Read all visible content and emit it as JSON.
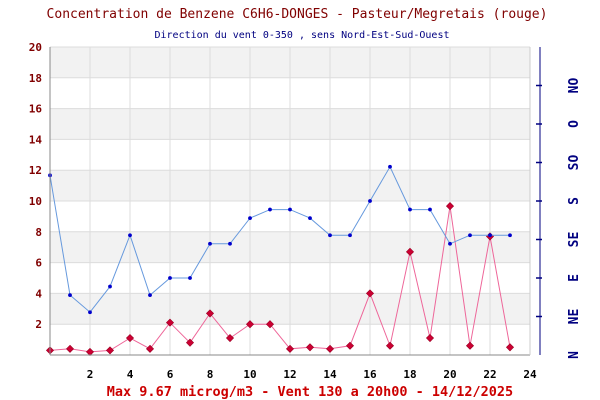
{
  "chart_data": {
    "type": "line",
    "title": "Concentration de Benzene C6H6-DONGES - Pasteur/Megretais (rouge)",
    "subtitle": "Direction du vent 0-350 , sens Nord-Est-Sud-Ouest",
    "footer": "Max 9.67 microg/m3 - Vent 130  a 20h00 - 14/12/2025",
    "xlim": [
      0,
      24
    ],
    "ylim": [
      0,
      20
    ],
    "y2lim": [
      0,
      360
    ],
    "x_ticks": [
      2,
      4,
      6,
      8,
      10,
      12,
      14,
      16,
      18,
      20,
      22,
      24
    ],
    "y_ticks": [
      2,
      4,
      6,
      8,
      10,
      12,
      14,
      16,
      18,
      20
    ],
    "direction_ticks": [
      {
        "label": "N",
        "deg": 0
      },
      {
        "label": "NE",
        "deg": 45
      },
      {
        "label": "E",
        "deg": 90
      },
      {
        "label": "SE",
        "deg": 135
      },
      {
        "label": "S",
        "deg": 180
      },
      {
        "label": "SO",
        "deg": 225
      },
      {
        "label": "O",
        "deg": 270
      },
      {
        "label": "NO",
        "deg": 315
      }
    ],
    "series": [
      {
        "axis": "left",
        "color": "#cc0033",
        "line_color": "#ee6699",
        "marker": "diamond",
        "x": [
          0,
          1,
          2,
          3,
          4,
          5,
          6,
          7,
          8,
          9,
          10,
          11,
          12,
          13,
          14,
          15,
          16,
          17,
          18,
          19,
          20,
          21,
          22,
          23
        ],
        "values": [
          0.3,
          0.4,
          0.2,
          0.3,
          1.1,
          0.4,
          2.1,
          0.8,
          2.7,
          1.1,
          2.0,
          2.0,
          0.4,
          0.5,
          0.4,
          0.6,
          4.0,
          0.6,
          6.7,
          1.1,
          9.67,
          0.6,
          7.7,
          0.5
        ]
      },
      {
        "axis": "right",
        "color": "#0000cc",
        "line_color": "#6699dd",
        "marker": "dot",
        "x": [
          0,
          1,
          2,
          3,
          4,
          5,
          6,
          7,
          8,
          9,
          10,
          11,
          12,
          13,
          14,
          15,
          16,
          17,
          18,
          19,
          20,
          21,
          22,
          23
        ],
        "values": [
          210,
          70,
          50,
          80,
          140,
          70,
          90,
          90,
          130,
          130,
          160,
          170,
          170,
          160,
          140,
          140,
          180,
          220,
          170,
          170,
          130,
          140,
          140,
          140
        ]
      }
    ],
    "band_colors": [
      "#f2f2f2",
      "#ffffff"
    ],
    "grid": true
  }
}
